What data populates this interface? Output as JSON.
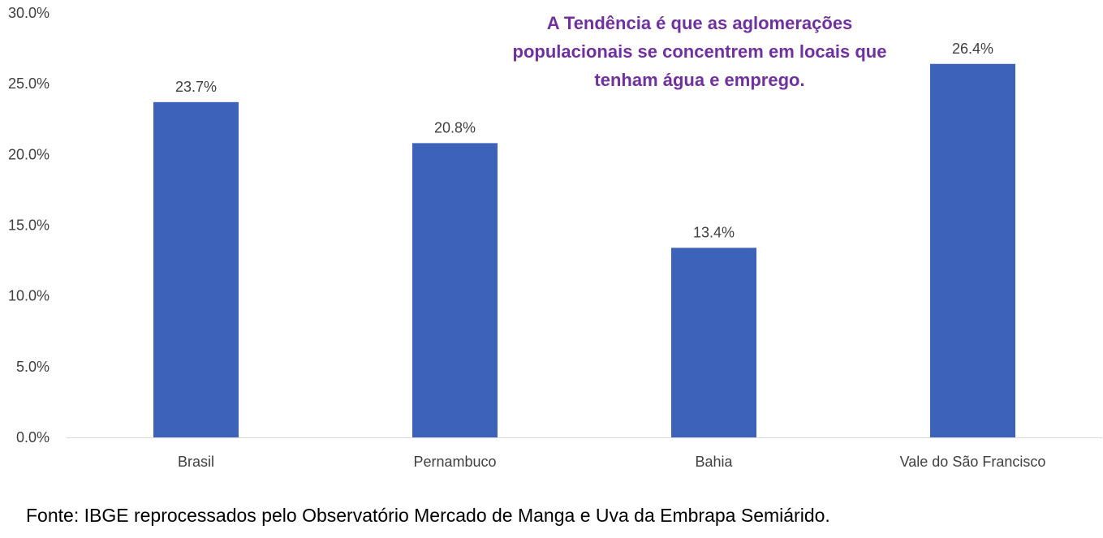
{
  "chart_data": {
    "type": "bar",
    "categories": [
      "Brasil",
      "Pernambuco",
      "Bahia",
      "Vale do São Francisco"
    ],
    "values": [
      23.7,
      20.8,
      13.4,
      26.4
    ],
    "value_labels": [
      "23.7%",
      "20.8%",
      "13.4%",
      "26.4%"
    ],
    "ylim": [
      0,
      30
    ],
    "yticks": [
      0,
      5,
      10,
      15,
      20,
      25,
      30
    ],
    "ytick_labels": [
      "0.0%",
      "5.0%",
      "10.0%",
      "15.0%",
      "20.0%",
      "25.0%",
      "30.0%"
    ],
    "grid": false,
    "bar_color": "#3c62b9",
    "annotation": {
      "lines": [
        "A Tendência é que as aglomerações",
        "populacionais se concentrem em locais que",
        "tenham água e emprego."
      ],
      "color": "#7030a0"
    }
  },
  "source": "Fonte: IBGE reprocessados pelo Observatório Mercado de Manga e Uva da Embrapa Semiárido."
}
